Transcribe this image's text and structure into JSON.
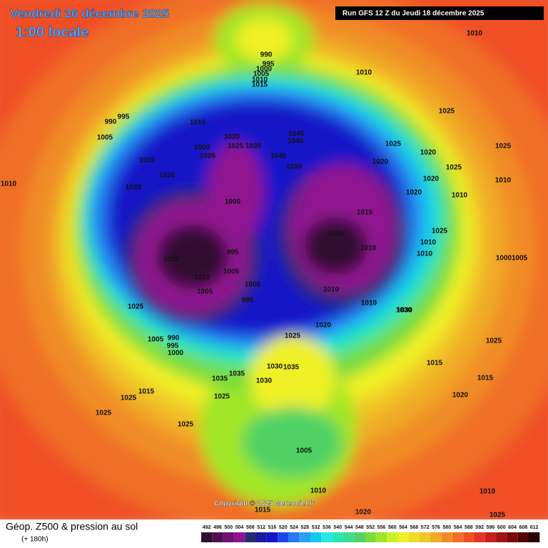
{
  "header": {
    "date": "Vendredi 26 décembre 2025",
    "local_time": "1:00 locale",
    "run": "Run GFS 12 Z du Jeudi 18 décembre 2025"
  },
  "footer": {
    "title": "Géop. Z500 & pression au sol",
    "lead_time": "(+ 180h)",
    "copyright": "Copyright © 2025 Meteociel.fr"
  },
  "pressure_labels": [
    "1010",
    "990",
    "995",
    "1000",
    "1005",
    "1010",
    "1015",
    "1010",
    "1025",
    "990",
    "995",
    "1005",
    "1015",
    "1010",
    "1020",
    "1020",
    "1000",
    "1005",
    "1020",
    "1025",
    "1035",
    "1045",
    "1040",
    "1045",
    "1030",
    "1020",
    "1025",
    "1020",
    "1020",
    "1025",
    "1025",
    "1010",
    "1000",
    "1015",
    "1000",
    "1010",
    "1020",
    "1025",
    "1005",
    "995",
    "1005",
    "1010",
    "1005",
    "1000",
    "995",
    "1025",
    "1010",
    "1020",
    "1010",
    "1030",
    "1005",
    "990",
    "995",
    "1000",
    "1025",
    "1030",
    "1035",
    "1035",
    "1015",
    "1015",
    "1020",
    "1015",
    "1025",
    "1035",
    "1025",
    "1030",
    "1025",
    "1025",
    "1005",
    "1010",
    "1020",
    "1015",
    "1010",
    "1025",
    "1010",
    "1010",
    "1005",
    "1000",
    "1010",
    "1010",
    "1030",
    "1025"
  ],
  "color_scale": {
    "values": [
      492,
      496,
      500,
      504,
      508,
      512,
      516,
      520,
      524,
      528,
      532,
      536,
      540,
      544,
      548,
      552,
      556,
      560,
      564,
      568,
      572,
      576,
      580,
      584,
      588,
      592,
      596,
      600,
      604,
      608,
      612
    ],
    "colors": [
      "#301030",
      "#501050",
      "#701070",
      "#901490",
      "#2a2a70",
      "#1a1a9a",
      "#1414c8",
      "#1e46e6",
      "#2878f0",
      "#28a0f0",
      "#14c8f0",
      "#28e6e6",
      "#28e6b4",
      "#3cdc8c",
      "#50d264",
      "#78dc3c",
      "#a0e628",
      "#c8f028",
      "#f0f028",
      "#f0dc28",
      "#f0c828",
      "#f0aa28",
      "#f08c28",
      "#f06e28",
      "#f05028",
      "#e63228",
      "#c81e1e",
      "#a01414",
      "#780a0a",
      "#500505",
      "#280000"
    ]
  }
}
